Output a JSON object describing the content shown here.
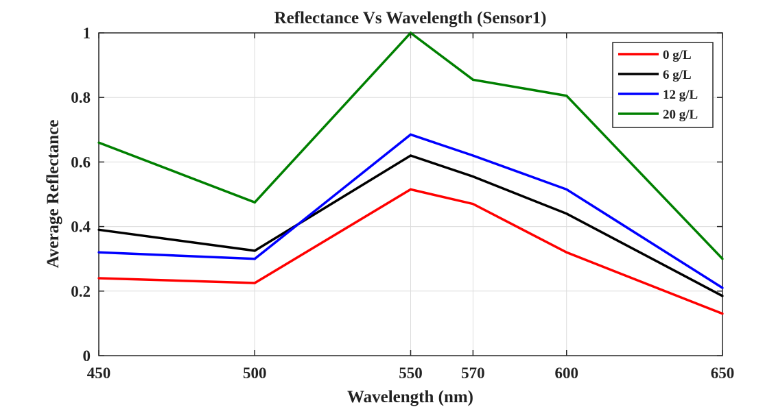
{
  "chart_data": {
    "type": "line",
    "title": "Reflectance Vs Wavelength (Sensor1)",
    "xlabel": "Wavelength (nm)",
    "ylabel": "Average Reflectance",
    "x": [
      450,
      500,
      550,
      570,
      600,
      650
    ],
    "xticks": [
      "450",
      "500",
      "550",
      "570",
      "600",
      "650"
    ],
    "yticks": [
      "0",
      "0.2",
      "0.4",
      "0.6",
      "0.8",
      "1"
    ],
    "xlim": [
      450,
      650
    ],
    "ylim": [
      0,
      1
    ],
    "grid": true,
    "legend_position": "top-right",
    "series": [
      {
        "name": "0 g/L",
        "color": "#ff0000",
        "values": [
          0.24,
          0.225,
          0.515,
          0.47,
          0.32,
          0.13
        ]
      },
      {
        "name": "6 g/L",
        "color": "#000000",
        "values": [
          0.39,
          0.325,
          0.62,
          0.555,
          0.44,
          0.185
        ]
      },
      {
        "name": "12 g/L",
        "color": "#0000ff",
        "values": [
          0.32,
          0.3,
          0.685,
          0.62,
          0.515,
          0.21
        ]
      },
      {
        "name": "20 g/L",
        "color": "#008000",
        "values": [
          0.66,
          0.475,
          1.0,
          0.855,
          0.805,
          0.3
        ]
      }
    ]
  }
}
